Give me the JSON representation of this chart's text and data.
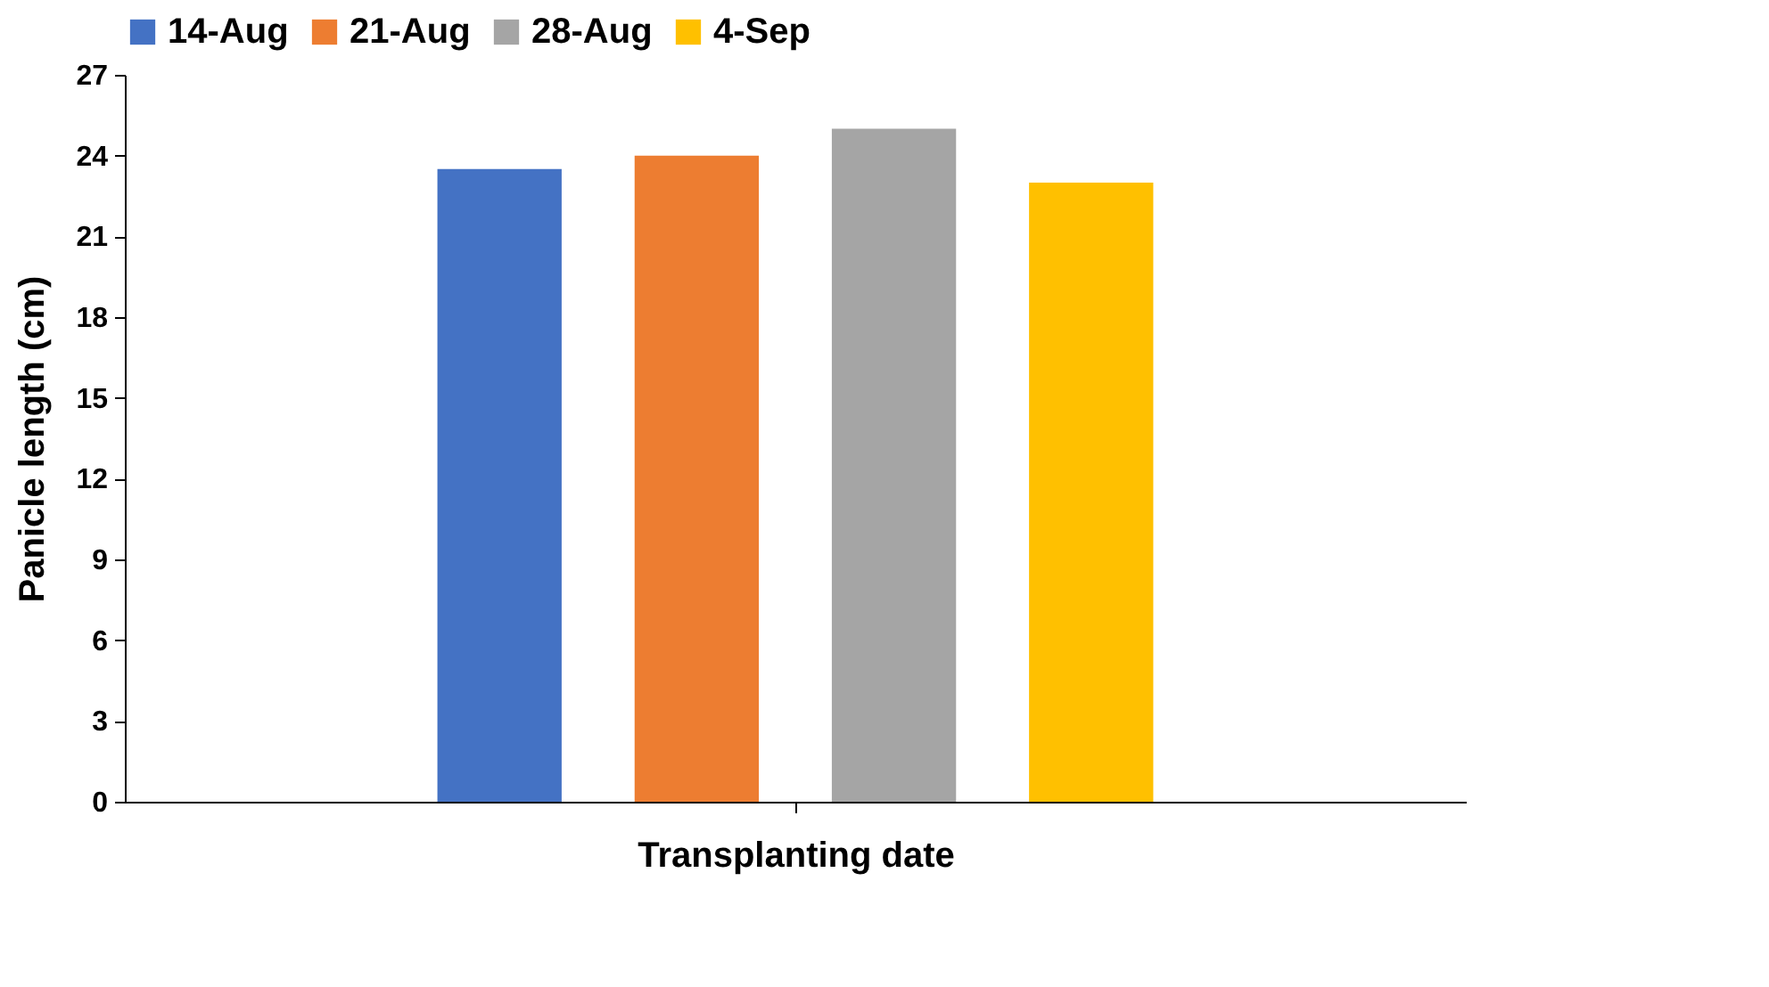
{
  "chart_data": {
    "type": "bar",
    "xlabel": "Transplanting date",
    "ylabel": "Panicle length (cm)",
    "categories": [
      null
    ],
    "series": [
      {
        "name": "14-Aug",
        "color": "#4472c4",
        "values": [
          23.5
        ]
      },
      {
        "name": "21-Aug",
        "color": "#ed7d31",
        "values": [
          24.0
        ]
      },
      {
        "name": "28-Aug",
        "color": "#a5a5a5",
        "values": [
          25.0
        ]
      },
      {
        "name": "4-Sep",
        "color": "#ffc000",
        "values": [
          23.0
        ]
      }
    ],
    "ylim": [
      0,
      27
    ],
    "yticks": [
      0,
      3,
      6,
      9,
      12,
      15,
      18,
      21,
      24,
      27
    ],
    "grid": false,
    "legend": "top"
  }
}
